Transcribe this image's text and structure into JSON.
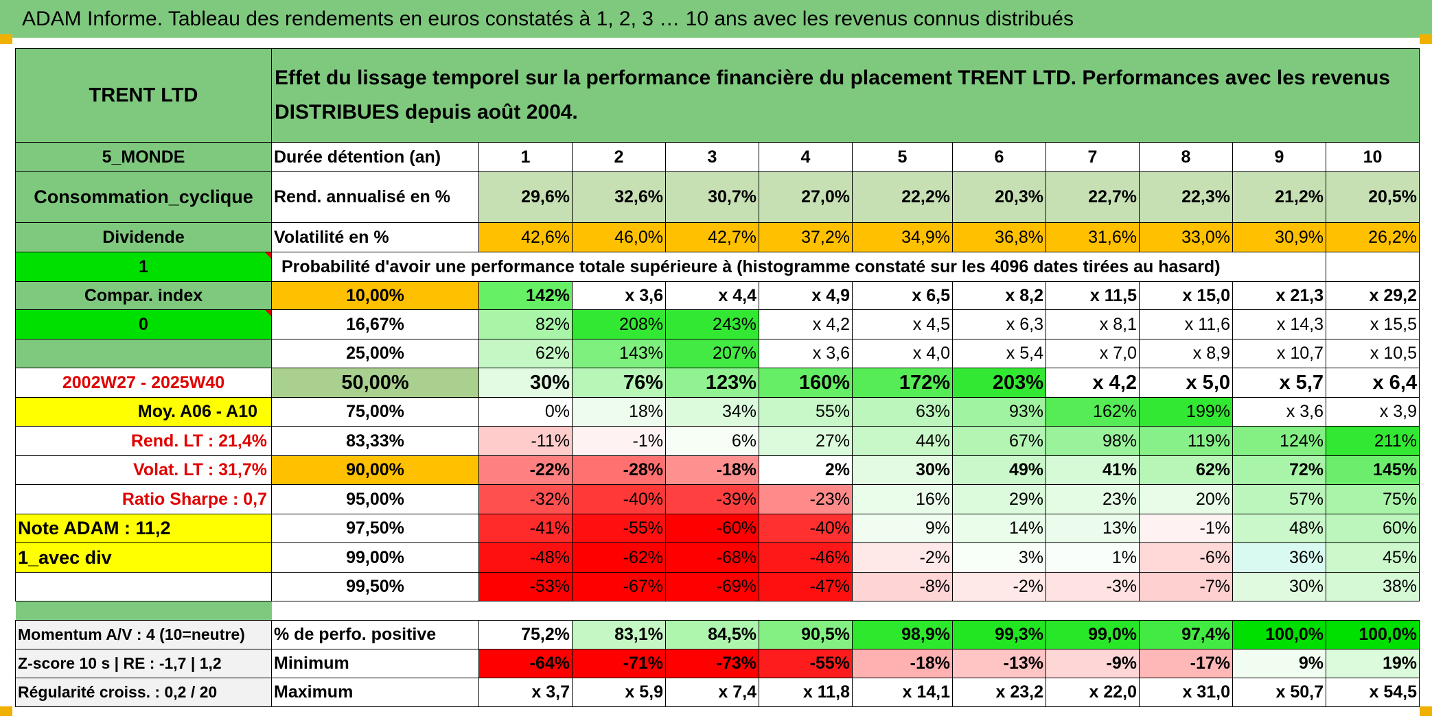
{
  "title": "ADAM Informe. Tableau des rendements en euros constatés à 1, 2, 3 … 10 ans avec les revenus connus distribués",
  "header": {
    "name": "TRENT LTD",
    "description": "Effet du lissage temporel sur la performance financière du placement TRENT LTD. Performances avec les revenus DISTRIBUES depuis août 2004."
  },
  "left_labels": {
    "zone": "5_MONDE",
    "sector": "Consommation_cyclique",
    "dividend": "Dividende",
    "one": "1",
    "compar": "Compar. index",
    "zero": "0",
    "period": "2002W27 - 2025W40",
    "moy": "Moy. A06 - A10",
    "rend_lt": "Rend. LT :    21,4%",
    "volat_lt": "Volat. LT :    31,7%",
    "sharpe": "Ratio Sharpe :    0,7",
    "note": "Note ADAM : 11,2",
    "avec_div": "1_avec div",
    "momentum": "Momentum A/V : 4 (10=neutre)",
    "zscore": "Z-score 10 s | RE : -1,7 | 1,2",
    "regularite": "Régularité croiss. : 0,2 / 20"
  },
  "durations_label": "Durée détention (an)",
  "durations": [
    "1",
    "2",
    "3",
    "4",
    "5",
    "6",
    "7",
    "8",
    "9",
    "10"
  ],
  "rend": {
    "label": "Rend. annualisé en %",
    "values": [
      "29,6%",
      "32,6%",
      "30,7%",
      "27,0%",
      "22,2%",
      "20,3%",
      "22,7%",
      "22,3%",
      "21,2%",
      "20,5%"
    ]
  },
  "volat": {
    "label": "Volatilité en %",
    "values": [
      "42,6%",
      "46,0%",
      "42,7%",
      "37,2%",
      "34,9%",
      "36,8%",
      "31,6%",
      "33,0%",
      "30,9%",
      "26,2%"
    ]
  },
  "prob_header": "Probabilité d'avoir une performance totale supérieure à (histogramme constaté sur les 4096 dates tirées au hasard)",
  "prob_rows": [
    {
      "pct": "10,00%",
      "values": [
        "142%",
        "x 3,6",
        "x 4,4",
        "x 4,9",
        "x 6,5",
        "x 8,2",
        "x 11,5",
        "x 15,0",
        "x 21,3",
        "x 29,2"
      ]
    },
    {
      "pct": "16,67%",
      "values": [
        "82%",
        "208%",
        "243%",
        "x 4,2",
        "x 4,5",
        "x 6,3",
        "x 8,1",
        "x 11,6",
        "x 14,3",
        "x 15,5"
      ]
    },
    {
      "pct": "25,00%",
      "values": [
        "62%",
        "143%",
        "207%",
        "x 3,6",
        "x 4,0",
        "x 5,4",
        "x 7,0",
        "x 8,9",
        "x 10,7",
        "x 10,5"
      ]
    },
    {
      "pct": "50,00%",
      "values": [
        "30%",
        "76%",
        "123%",
        "160%",
        "172%",
        "203%",
        "x 4,2",
        "x 5,0",
        "x 5,7",
        "x 6,4"
      ]
    },
    {
      "pct": "75,00%",
      "values": [
        "0%",
        "18%",
        "34%",
        "55%",
        "63%",
        "93%",
        "162%",
        "199%",
        "x 3,6",
        "x 3,9"
      ]
    },
    {
      "pct": "83,33%",
      "values": [
        "-11%",
        "-1%",
        "6%",
        "27%",
        "44%",
        "67%",
        "98%",
        "119%",
        "124%",
        "211%"
      ]
    },
    {
      "pct": "90,00%",
      "values": [
        "-22%",
        "-28%",
        "-18%",
        "2%",
        "30%",
        "49%",
        "41%",
        "62%",
        "72%",
        "145%"
      ]
    },
    {
      "pct": "95,00%",
      "values": [
        "-32%",
        "-40%",
        "-39%",
        "-23%",
        "16%",
        "29%",
        "23%",
        "20%",
        "57%",
        "75%"
      ]
    },
    {
      "pct": "97,50%",
      "values": [
        "-41%",
        "-55%",
        "-60%",
        "-40%",
        "9%",
        "14%",
        "13%",
        "-1%",
        "48%",
        "60%"
      ]
    },
    {
      "pct": "99,00%",
      "values": [
        "-48%",
        "-62%",
        "-68%",
        "-46%",
        "-2%",
        "3%",
        "1%",
        "-6%",
        "36%",
        "45%"
      ]
    },
    {
      "pct": "99,50%",
      "values": [
        "-53%",
        "-67%",
        "-69%",
        "-47%",
        "-8%",
        "-2%",
        "-3%",
        "-7%",
        "30%",
        "38%"
      ]
    }
  ],
  "positive": {
    "label": "% de perfo. positive",
    "values": [
      "75,2%",
      "83,1%",
      "84,5%",
      "90,5%",
      "98,9%",
      "99,3%",
      "99,0%",
      "97,4%",
      "100,0%",
      "100,0%"
    ]
  },
  "minimum": {
    "label": "Minimum",
    "values": [
      "-64%",
      "-71%",
      "-73%",
      "-55%",
      "-18%",
      "-13%",
      "-9%",
      "-17%",
      "9%",
      "19%"
    ]
  },
  "maximum": {
    "label": "Maximum",
    "values": [
      "x 3,7",
      "x 5,9",
      "x 7,4",
      "x 11,8",
      "x 14,1",
      "x 23,2",
      "x 22,0",
      "x 31,0",
      "x 50,7",
      "x 54,5"
    ]
  },
  "colors": {
    "header_green": "#7fc97f",
    "bright_green": "#00e000",
    "orange": "#ffc000",
    "yellow": "#ffff00",
    "light_rend": "#c6e0b4",
    "pct50": "#a9d08e",
    "label_red": "#e00000"
  },
  "cell_colors": {
    "rend": [
      "#c6e0b4",
      "#c6e0b4",
      "#c6e0b4",
      "#c6e0b4",
      "#c6e0b4",
      "#c6e0b4",
      "#c6e0b4",
      "#c6e0b4",
      "#c6e0b4",
      "#c6e0b4"
    ],
    "volat": [
      "#ffc000",
      "#ffc000",
      "#ffc000",
      "#ffc000",
      "#ffc000",
      "#ffc000",
      "#ffc000",
      "#ffc000",
      "#ffc000",
      "#ffc000"
    ],
    "prob": [
      [
        "#66f066",
        "#ffffff",
        "#ffffff",
        "#ffffff",
        "#ffffff",
        "#ffffff",
        "#ffffff",
        "#ffffff",
        "#ffffff",
        "#ffffff"
      ],
      [
        "#a8f5a8",
        "#33e833",
        "#33e833",
        "#ffffff",
        "#ffffff",
        "#ffffff",
        "#ffffff",
        "#ffffff",
        "#ffffff",
        "#ffffff"
      ],
      [
        "#c4f7c4",
        "#7ef07e",
        "#44ea44",
        "#ffffff",
        "#ffffff",
        "#ffffff",
        "#ffffff",
        "#ffffff",
        "#ffffff",
        "#ffffff"
      ],
      [
        "#e2fbe2",
        "#b8f6b8",
        "#90f290",
        "#66ee66",
        "#55ec55",
        "#33e833",
        "#ffffff",
        "#ffffff",
        "#ffffff",
        "#ffffff"
      ],
      [
        "#ffffff",
        "#eefcee",
        "#dcfadc",
        "#c8f8c8",
        "#bcf6bc",
        "#a0f3a0",
        "#55ec55",
        "#33e833",
        "#ffffff",
        "#ffffff"
      ],
      [
        "#ffcccc",
        "#fff2f2",
        "#f6fef6",
        "#dcfadc",
        "#c8f8c8",
        "#b4f5b4",
        "#9af29a",
        "#88f088",
        "#84f084",
        "#33e833"
      ],
      [
        "#ff8080",
        "#ff7070",
        "#ff9090",
        "#ffffff",
        "#e2fbe2",
        "#caf8ca",
        "#d6fad6",
        "#b8f6b8",
        "#a8f4a8",
        "#6cee6c"
      ],
      [
        "#ff5050",
        "#ff3838",
        "#ff4040",
        "#ff8a8a",
        "#eafcea",
        "#dcfadc",
        "#e4fbe4",
        "#e8fce8",
        "#bcf6bc",
        "#aaf4aa"
      ],
      [
        "#ff2a2a",
        "#ff0f0f",
        "#ff0000",
        "#ff3030",
        "#f2fdf2",
        "#eafcea",
        "#ecfcec",
        "#fff2f2",
        "#caf8ca",
        "#bcf6bc"
      ],
      [
        "#ff1010",
        "#ff0000",
        "#ff0000",
        "#ff1818",
        "#ffe8e8",
        "#f8fef8",
        "#fafefa",
        "#ffd8d8",
        "#d8faf0",
        "#ccf8cc"
      ],
      [
        "#ff0000",
        "#ff0000",
        "#ff0000",
        "#ff1010",
        "#ffd4d4",
        "#ffe8e8",
        "#ffe2e2",
        "#ffd0d0",
        "#e0fae0",
        "#d4f9d4"
      ]
    ],
    "positive": [
      "#ffffff",
      "#c4f7c4",
      "#aef5ae",
      "#84f084",
      "#2ee82e",
      "#22e622",
      "#28e728",
      "#44ea44",
      "#00e000",
      "#00e000"
    ],
    "minimum": [
      "#ff0000",
      "#ff0000",
      "#ff0000",
      "#ff1c1c",
      "#ffb0b0",
      "#ffc4c4",
      "#ffd6d6",
      "#ffb8b8",
      "#f0fdf0",
      "#dcfadc"
    ],
    "maximum": [
      "#ffffff",
      "#ffffff",
      "#ffffff",
      "#ffffff",
      "#ffffff",
      "#ffffff",
      "#ffffff",
      "#ffffff",
      "#ffffff",
      "#ffffff"
    ]
  }
}
